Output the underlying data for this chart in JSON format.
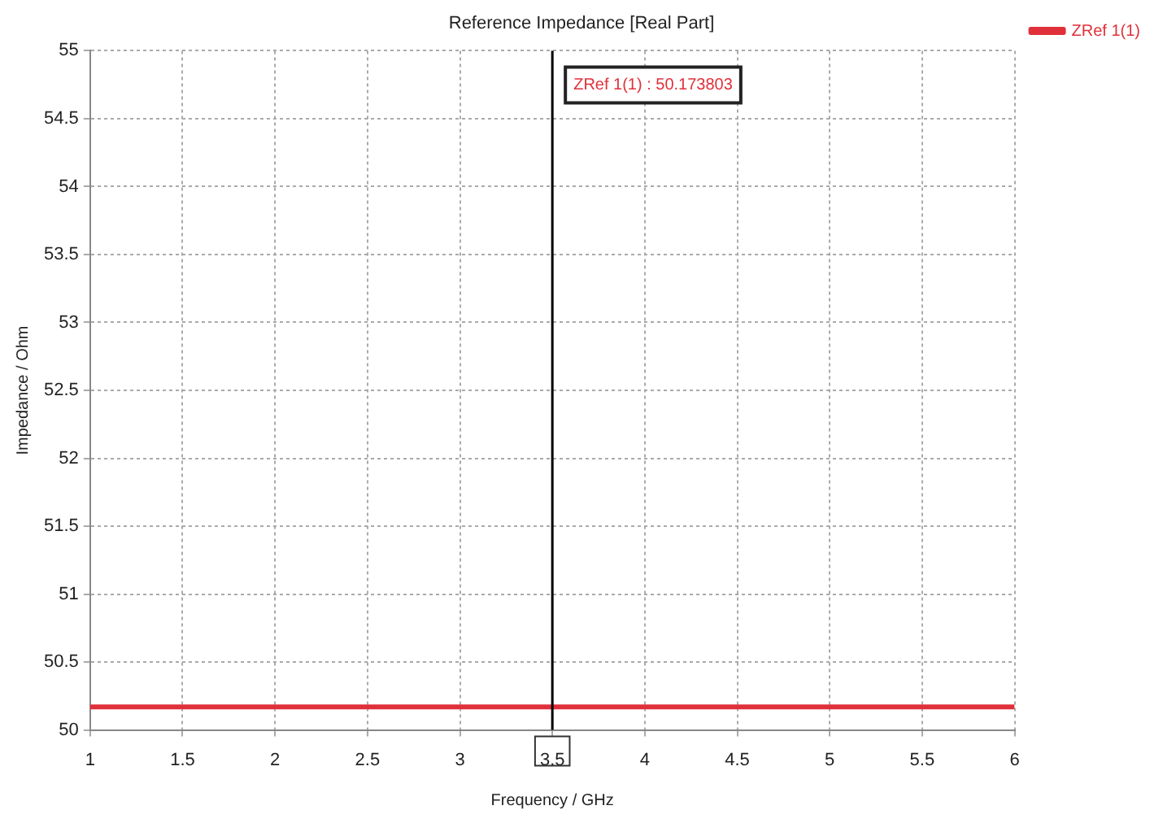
{
  "chart_data": {
    "type": "line",
    "title": "Reference Impedance [Real Part]",
    "xlabel": "Frequency / GHz",
    "ylabel": "Impedance / Ohm",
    "x": [
      1,
      6
    ],
    "series": [
      {
        "name": "ZRef 1(1)",
        "color": "#e0303a",
        "values": [
          50.17,
          50.17
        ]
      }
    ],
    "xlim": [
      1,
      6
    ],
    "xticks": [
      1,
      1.5,
      2,
      2.5,
      3,
      3.5,
      4,
      4.5,
      5,
      5.5,
      6
    ],
    "ylim": [
      50,
      55
    ],
    "yticks": [
      50,
      50.5,
      51,
      51.5,
      52,
      52.5,
      53,
      53.5,
      54,
      54.5,
      55
    ],
    "ref_lines": [
      {
        "axis": "x",
        "value": 3.5,
        "color": "#000000"
      }
    ],
    "annotations": [
      "ZRef 1(1) : 50.173803"
    ],
    "grid": true,
    "legend": "top right",
    "marker": "none",
    "line_style": "solid"
  }
}
